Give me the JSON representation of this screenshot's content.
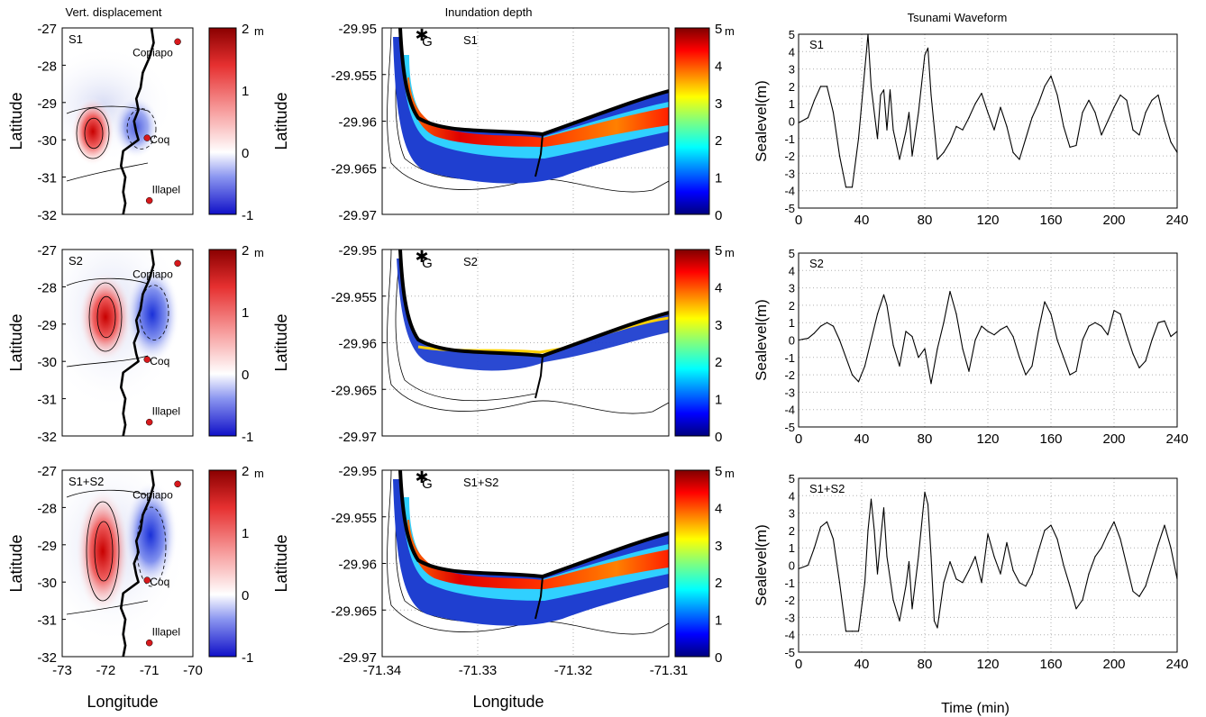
{
  "titles": {
    "displacement": "Vert. displacement",
    "inundation": "Inundation depth",
    "waveform": "Tsunami Waveform"
  },
  "scenarios": [
    "S1",
    "S2",
    "S1+S2"
  ],
  "colors": {
    "red": "#d7191c",
    "blue": "#1f3fd0",
    "coast": "#000000",
    "grid": "#b0b0b0"
  },
  "displacement_panels": {
    "ylabel": "Latitude",
    "xlabel": "Longitude",
    "yticks": [
      "-27",
      "-28",
      "-29",
      "-30",
      "-31",
      "-32"
    ],
    "xticks": [
      "-73",
      "-72",
      "-71",
      "-70"
    ],
    "cities": [
      {
        "name": "Copiapo",
        "lon": -70.35,
        "lat": -27.37
      },
      {
        "name": "Coq",
        "lon": -71.05,
        "lat": -29.95
      },
      {
        "name": "Illapel",
        "lon": -71.0,
        "lat": -31.63
      }
    ],
    "colorbar": {
      "ticks": [
        "2",
        "1",
        "0",
        "-1"
      ],
      "unit": "m",
      "range": [
        -1,
        2
      ]
    }
  },
  "inundation_panels": {
    "ylabel": "Latitude",
    "xlabel": "Longitude",
    "yticks": [
      "-29.95",
      "-29.955",
      "-29.96",
      "-29.965",
      "-29.97"
    ],
    "xticks": [
      "-71.34",
      "-71.33",
      "-71.32",
      "-71.31"
    ],
    "gauge_label": "G",
    "colorbar": {
      "ticks": [
        "5",
        "4",
        "3",
        "2",
        "1",
        "0"
      ],
      "unit": "m",
      "range": [
        0,
        5
      ]
    }
  },
  "chart_data": [
    {
      "type": "line",
      "title": "Tsunami Waveform",
      "panel": "S1",
      "xlabel": "",
      "ylabel": "Sealevel(m)",
      "xlim": [
        0,
        240
      ],
      "ylim": [
        -5,
        5
      ],
      "grid": true,
      "x": [
        0,
        6,
        10,
        14,
        18,
        22,
        26,
        30,
        34,
        38,
        42,
        44,
        46,
        50,
        52,
        54,
        56,
        58,
        60,
        64,
        68,
        70,
        72,
        76,
        80,
        82,
        84,
        88,
        92,
        96,
        100,
        104,
        108,
        112,
        116,
        120,
        124,
        128,
        132,
        136,
        140,
        144,
        148,
        152,
        156,
        160,
        164,
        168,
        172,
        176,
        180,
        184,
        188,
        192,
        196,
        200,
        204,
        208,
        212,
        216,
        220,
        224,
        228,
        232,
        236,
        240
      ],
      "values": [
        -0.1,
        0.2,
        1.2,
        2.0,
        2.0,
        0.5,
        -2.0,
        -3.8,
        -3.8,
        -1.0,
        3.0,
        5.0,
        2.0,
        -1.0,
        1.5,
        1.8,
        -0.5,
        1.8,
        -0.5,
        -2.2,
        -0.6,
        0.5,
        -2.0,
        0.5,
        3.8,
        4.2,
        1.5,
        -2.2,
        -1.8,
        -1.2,
        -0.3,
        -0.5,
        0.2,
        1.0,
        1.6,
        0.5,
        -0.5,
        0.8,
        -0.3,
        -1.8,
        -2.2,
        -1.0,
        0.2,
        1.0,
        2.0,
        2.6,
        1.5,
        -0.3,
        -1.5,
        -1.4,
        0.5,
        1.2,
        0.5,
        -0.8,
        0.0,
        0.8,
        1.5,
        1.2,
        -0.5,
        -0.8,
        0.5,
        1.2,
        1.5,
        0.0,
        -1.2,
        -1.8
      ],
      "xticks": [
        "0",
        "40",
        "80",
        "120",
        "160",
        "200",
        "240"
      ],
      "yticks": [
        "5",
        "4",
        "3",
        "2",
        "1",
        "0",
        "-1",
        "-2",
        "-3",
        "-4",
        "-5"
      ]
    },
    {
      "type": "line",
      "panel": "S2",
      "xlabel": "",
      "ylabel": "Sealevel(m)",
      "xlim": [
        0,
        240
      ],
      "ylim": [
        -5,
        5
      ],
      "grid": true,
      "x": [
        0,
        6,
        10,
        14,
        18,
        22,
        26,
        30,
        34,
        38,
        42,
        46,
        50,
        54,
        56,
        60,
        64,
        68,
        72,
        76,
        80,
        84,
        88,
        92,
        96,
        100,
        104,
        108,
        112,
        116,
        120,
        124,
        128,
        132,
        136,
        140,
        144,
        148,
        152,
        156,
        160,
        164,
        168,
        172,
        176,
        180,
        184,
        188,
        192,
        196,
        200,
        204,
        208,
        212,
        216,
        220,
        224,
        228,
        232,
        236,
        240
      ],
      "values": [
        0.0,
        0.1,
        0.4,
        0.8,
        1.0,
        0.8,
        0.0,
        -1.0,
        -2.0,
        -2.4,
        -1.5,
        0.0,
        1.5,
        2.6,
        2.0,
        -0.3,
        -1.5,
        0.5,
        0.2,
        -1.0,
        -0.5,
        -2.5,
        -0.5,
        1.0,
        2.8,
        1.5,
        -0.5,
        -1.8,
        0.0,
        0.8,
        0.5,
        0.3,
        0.6,
        0.8,
        0.2,
        -1.0,
        -2.0,
        -1.5,
        0.5,
        2.2,
        1.5,
        0.0,
        -1.0,
        -2.0,
        -1.8,
        0.0,
        0.8,
        1.0,
        0.8,
        0.3,
        1.7,
        1.5,
        0.3,
        -0.8,
        -1.6,
        -1.2,
        0.0,
        1.0,
        1.1,
        0.2,
        0.5
      ],
      "xticks": [
        "0",
        "40",
        "80",
        "120",
        "160",
        "200",
        "240"
      ],
      "yticks": [
        "5",
        "4",
        "3",
        "2",
        "1",
        "0",
        "-1",
        "-2",
        "-3",
        "-4",
        "-5"
      ]
    },
    {
      "type": "line",
      "panel": "S1+S2",
      "xlabel": "Time (min)",
      "ylabel": "Sealevel(m)",
      "xlim": [
        0,
        240
      ],
      "ylim": [
        -5,
        5
      ],
      "grid": true,
      "x": [
        0,
        6,
        10,
        14,
        18,
        22,
        26,
        30,
        34,
        38,
        42,
        44,
        46,
        48,
        50,
        52,
        54,
        56,
        60,
        64,
        68,
        70,
        72,
        76,
        80,
        82,
        84,
        86,
        88,
        92,
        96,
        100,
        104,
        108,
        112,
        116,
        120,
        124,
        128,
        132,
        136,
        140,
        144,
        148,
        152,
        156,
        160,
        164,
        168,
        172,
        176,
        180,
        184,
        188,
        192,
        196,
        200,
        204,
        208,
        212,
        216,
        220,
        224,
        228,
        232,
        236,
        240
      ],
      "values": [
        -0.2,
        0.0,
        1.0,
        2.2,
        2.5,
        1.5,
        -1.0,
        -3.8,
        -3.8,
        -3.8,
        -1.0,
        2.0,
        3.8,
        2.0,
        -0.5,
        1.5,
        3.3,
        0.5,
        -2.0,
        -3.2,
        -1.2,
        0.2,
        -2.5,
        0.5,
        4.2,
        3.5,
        0.5,
        -3.2,
        -3.6,
        -1.0,
        0.2,
        -0.8,
        -1.0,
        -0.3,
        0.5,
        -1.0,
        1.8,
        0.5,
        -0.5,
        1.3,
        -0.3,
        -1.0,
        -1.2,
        -0.5,
        0.8,
        2.0,
        2.3,
        1.5,
        0.0,
        -1.2,
        -2.5,
        -2.0,
        -0.5,
        0.5,
        1.0,
        1.8,
        2.5,
        1.5,
        0.0,
        -1.5,
        -1.8,
        -1.2,
        0.0,
        1.2,
        2.3,
        1.0,
        -0.8
      ],
      "xticks": [
        "0",
        "40",
        "80",
        "120",
        "160",
        "200",
        "240"
      ],
      "yticks": [
        "5",
        "4",
        "3",
        "2",
        "1",
        "0",
        "-1",
        "-2",
        "-3",
        "-4",
        "-5"
      ]
    }
  ]
}
